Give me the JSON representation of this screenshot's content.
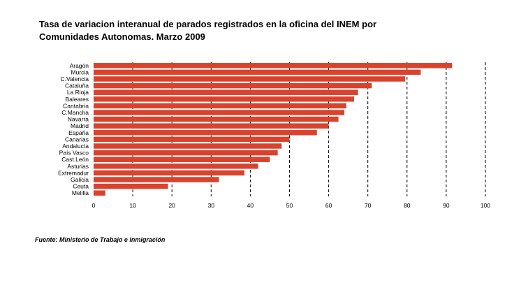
{
  "title_line1": "Tasa de variacion interanual de parados registrados en la oficina del INEM por",
  "title_line2": "Comunidades Autonomas. Marzo 2009",
  "source": "Fuente: Ministerio de Trabajo e Inmigración",
  "chart_data": {
    "type": "bar",
    "orientation": "horizontal",
    "categories": [
      "Aragón",
      "Murcia",
      "C.Valencia",
      "Cataluña",
      "La Rioja",
      "Baleares",
      "Cantabria",
      "C.Mancha",
      "Navarra",
      "Madrid",
      "España",
      "Canarias",
      "Andalucía",
      "País Vasco",
      "Cast.León",
      "Asturias",
      "Extremadur",
      "Galicia",
      "Ceuta",
      "Melilla"
    ],
    "values": [
      91.5,
      83.5,
      79.5,
      71,
      67.5,
      66.5,
      64.5,
      64,
      62.5,
      60,
      57,
      50,
      48,
      47,
      45,
      42,
      38.5,
      32,
      19,
      3
    ],
    "xlim": [
      0,
      100
    ],
    "xticks": [
      0,
      10,
      20,
      30,
      40,
      50,
      60,
      70,
      80,
      90,
      100
    ],
    "grid": "vertical dashed",
    "bar_color": "#d9432e"
  }
}
